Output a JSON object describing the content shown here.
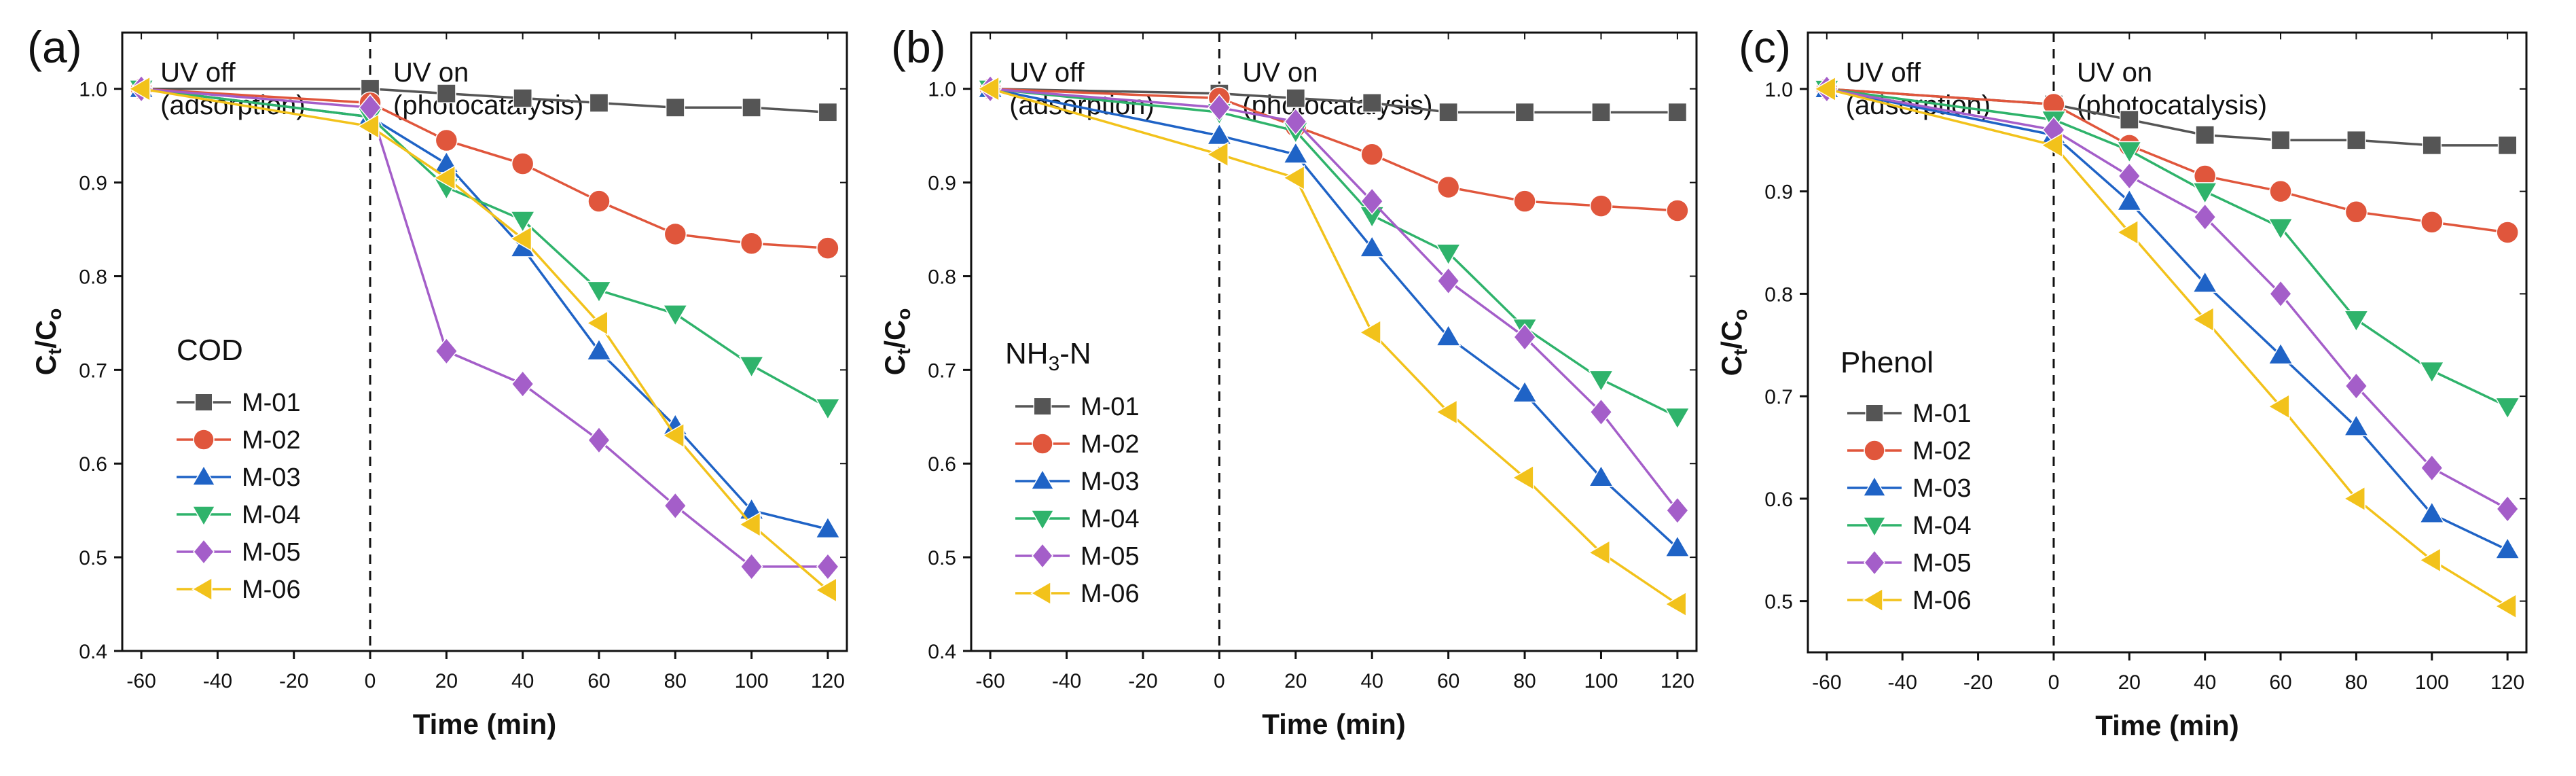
{
  "chart_data": [
    {
      "type": "line",
      "panel_label": "(a)",
      "title": "COD",
      "xlabel": "Time (min)",
      "ylabel_main": "C",
      "ylabel_sub1": "t",
      "ylabel_sep": "/C",
      "ylabel_sub2": "o",
      "xlim": [
        -65,
        125
      ],
      "ylim": [
        0.4,
        1.06
      ],
      "xticks": [
        -60,
        -40,
        -20,
        0,
        20,
        40,
        60,
        80,
        100,
        120
      ],
      "xtick_labels": [
        "-60",
        "-40",
        "-20",
        "0",
        "20",
        "40",
        "60",
        "80",
        "100",
        "120"
      ],
      "yticks": [
        0.4,
        0.5,
        0.6,
        0.7,
        0.8,
        0.9,
        1.0
      ],
      "ytick_labels": [
        "0.4",
        "0.5",
        "0.6",
        "0.7",
        "0.8",
        "0.9",
        "1.0"
      ],
      "annotation_off": [
        "UV off",
        "(adsorption)"
      ],
      "annotation_on": [
        "UV on",
        "(photocatalysis)"
      ],
      "divider_x": 0,
      "x": [
        -60,
        0,
        20,
        40,
        60,
        80,
        100,
        120
      ],
      "series": [
        {
          "name": "M-01",
          "values": [
            1.0,
            1.0,
            0.995,
            0.99,
            0.985,
            0.98,
            0.98,
            0.975
          ]
        },
        {
          "name": "M-02",
          "values": [
            1.0,
            0.985,
            0.945,
            0.92,
            0.88,
            0.845,
            0.835,
            0.83
          ]
        },
        {
          "name": "M-03",
          "values": [
            1.0,
            0.97,
            0.92,
            0.83,
            0.72,
            0.64,
            0.55,
            0.53
          ]
        },
        {
          "name": "M-04",
          "values": [
            1.0,
            0.97,
            0.895,
            0.86,
            0.785,
            0.76,
            0.705,
            0.66
          ]
        },
        {
          "name": "M-05",
          "values": [
            1.0,
            0.98,
            0.72,
            0.685,
            0.625,
            0.555,
            0.49,
            0.49
          ]
        },
        {
          "name": "M-06",
          "values": [
            1.0,
            0.96,
            0.905,
            0.84,
            0.75,
            0.63,
            0.535,
            0.465
          ]
        }
      ]
    },
    {
      "type": "line",
      "panel_label": "(b)",
      "title_main": "NH",
      "title_sub": "3",
      "title_tail": "-N",
      "xlabel": "Time (min)",
      "ylabel_main": "C",
      "ylabel_sub1": "t",
      "ylabel_sep": "/C",
      "ylabel_sub2": "o",
      "xlim": [
        -65,
        125
      ],
      "ylim": [
        0.4,
        1.06
      ],
      "xticks": [
        -60,
        -40,
        -20,
        0,
        20,
        40,
        60,
        80,
        100,
        120
      ],
      "xtick_labels": [
        "-60",
        "-40",
        "-20",
        "0",
        "20",
        "40",
        "60",
        "80",
        "100",
        "120"
      ],
      "yticks": [
        0.4,
        0.5,
        0.6,
        0.7,
        0.8,
        0.9,
        1.0
      ],
      "ytick_labels": [
        "0.4",
        "0.5",
        "0.6",
        "0.7",
        "0.8",
        "0.9",
        "1.0"
      ],
      "annotation_off": [
        "UV off",
        "(adsorption)"
      ],
      "annotation_on": [
        "UV on",
        "(photocatalysis)"
      ],
      "divider_x": 0,
      "x": [
        -60,
        0,
        20,
        40,
        60,
        80,
        100,
        120
      ],
      "series": [
        {
          "name": "M-01",
          "values": [
            1.0,
            0.995,
            0.99,
            0.985,
            0.975,
            0.975,
            0.975,
            0.975
          ]
        },
        {
          "name": "M-02",
          "values": [
            1.0,
            0.99,
            0.96,
            0.93,
            0.895,
            0.88,
            0.875,
            0.87
          ]
        },
        {
          "name": "M-03",
          "values": [
            1.0,
            0.95,
            0.93,
            0.83,
            0.735,
            0.675,
            0.585,
            0.51
          ]
        },
        {
          "name": "M-04",
          "values": [
            1.0,
            0.975,
            0.955,
            0.865,
            0.825,
            0.745,
            0.69,
            0.65
          ]
        },
        {
          "name": "M-05",
          "values": [
            1.0,
            0.98,
            0.965,
            0.88,
            0.795,
            0.735,
            0.655,
            0.55
          ]
        },
        {
          "name": "M-06",
          "values": [
            1.0,
            0.93,
            0.905,
            0.74,
            0.655,
            0.585,
            0.505,
            0.45
          ]
        }
      ]
    },
    {
      "type": "line",
      "panel_label": "(c)",
      "title": "Phenol",
      "xlabel": "Time (min)",
      "ylabel_main": "C",
      "ylabel_sub1": "t",
      "ylabel_sep": "/C",
      "ylabel_sub2": "o",
      "xlim": [
        -65,
        125
      ],
      "ylim": [
        0.45,
        1.055
      ],
      "xticks": [
        -60,
        -40,
        -20,
        0,
        20,
        40,
        60,
        80,
        100,
        120
      ],
      "xtick_labels": [
        "-60",
        "-40",
        "-20",
        "0",
        "20",
        "40",
        "60",
        "80",
        "100",
        "120"
      ],
      "yticks": [
        0.5,
        0.6,
        0.7,
        0.8,
        0.9,
        1.0
      ],
      "ytick_labels": [
        "0.5",
        "0.6",
        "0.7",
        "0.8",
        "0.9",
        "1.0"
      ],
      "annotation_off": [
        "UV off",
        "(adsorption)"
      ],
      "annotation_on": [
        "UV on",
        "(photocatalysis)"
      ],
      "divider_x": 0,
      "x": [
        -60,
        0,
        20,
        40,
        60,
        80,
        100,
        120
      ],
      "series": [
        {
          "name": "M-01",
          "values": [
            1.0,
            0.985,
            0.97,
            0.955,
            0.95,
            0.95,
            0.945,
            0.945
          ]
        },
        {
          "name": "M-02",
          "values": [
            1.0,
            0.985,
            0.945,
            0.915,
            0.9,
            0.88,
            0.87,
            0.86
          ]
        },
        {
          "name": "M-03",
          "values": [
            1.0,
            0.955,
            0.89,
            0.81,
            0.74,
            0.67,
            0.585,
            0.55
          ]
        },
        {
          "name": "M-04",
          "values": [
            1.0,
            0.97,
            0.94,
            0.9,
            0.865,
            0.775,
            0.725,
            0.69
          ]
        },
        {
          "name": "M-05",
          "values": [
            1.0,
            0.96,
            0.915,
            0.875,
            0.8,
            0.71,
            0.63,
            0.59
          ]
        },
        {
          "name": "M-06",
          "values": [
            1.0,
            0.945,
            0.86,
            0.775,
            0.69,
            0.6,
            0.54,
            0.495
          ]
        }
      ]
    }
  ],
  "series_styles": [
    {
      "name": "M-01",
      "color": "#555555",
      "marker": "square"
    },
    {
      "name": "M-02",
      "color": "#e0563c",
      "marker": "circle"
    },
    {
      "name": "M-03",
      "color": "#1f63c6",
      "marker": "triangle-up"
    },
    {
      "name": "M-04",
      "color": "#2fb36b",
      "marker": "triangle-down"
    },
    {
      "name": "M-05",
      "color": "#a45ec9",
      "marker": "diamond"
    },
    {
      "name": "M-06",
      "color": "#f2c21b",
      "marker": "triangle-left"
    }
  ]
}
